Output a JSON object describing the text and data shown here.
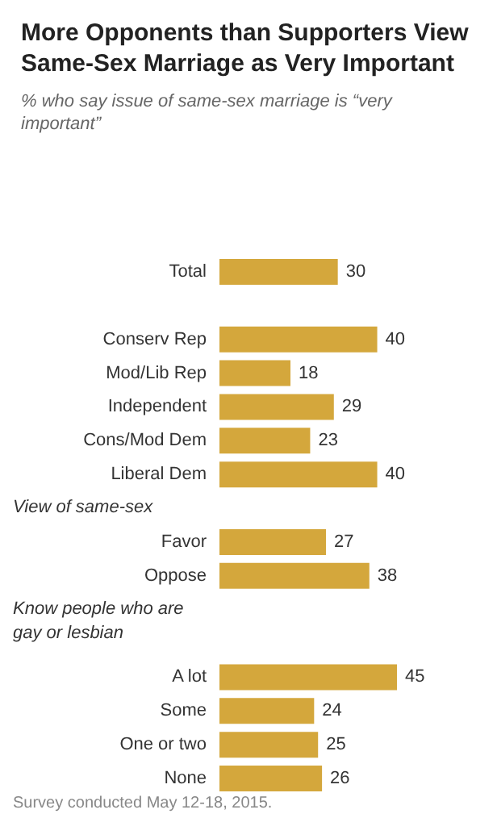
{
  "chart_data": {
    "type": "bar",
    "orientation": "horizontal",
    "title": "More Opponents than Supporters View Same-Sex Marriage as Very Important",
    "subtitle": "% who say issue of same-sex marriage is “very important”",
    "categories": [
      "Total",
      null,
      "Conserv Rep",
      "Mod/Lib Rep",
      "Independent",
      "Cons/Mod Dem",
      "Liberal Dem",
      null,
      "Favor",
      "Oppose",
      null,
      null,
      "A lot",
      "Some",
      "One or two",
      "None"
    ],
    "values": [
      30,
      null,
      40,
      18,
      29,
      23,
      40,
      null,
      27,
      38,
      null,
      null,
      45,
      24,
      25,
      26
    ],
    "color": "#d4a73c",
    "data_labels": true,
    "tick_labels": "y",
    "annotations": [
      "View of same-sex",
      "Know people who are gay or lesbian",
      "Survey conducted May 12-18, 2015."
    ]
  }
}
